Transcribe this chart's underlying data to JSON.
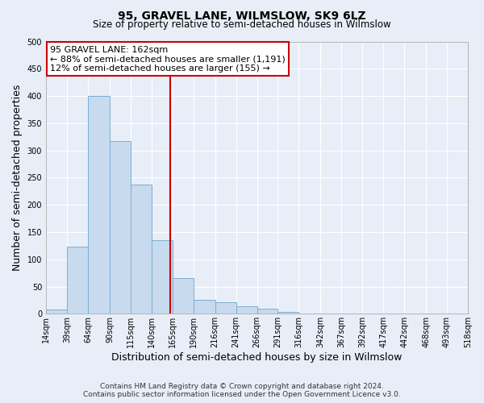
{
  "title": "95, GRAVEL LANE, WILMSLOW, SK9 6LZ",
  "subtitle": "Size of property relative to semi-detached houses in Wilmslow",
  "xlabel": "Distribution of semi-detached houses by size in Wilmslow",
  "ylabel": "Number of semi-detached properties",
  "bin_edges": [
    14,
    39,
    64,
    90,
    115,
    140,
    165,
    190,
    216,
    241,
    266,
    291,
    316,
    342,
    367,
    392,
    417,
    442,
    468,
    493,
    518
  ],
  "bar_heights": [
    8,
    123,
    400,
    318,
    237,
    135,
    65,
    26,
    22,
    14,
    10,
    4,
    1,
    0,
    0,
    0,
    0,
    0,
    0,
    1
  ],
  "bar_color": "#c8daee",
  "bar_edgecolor": "#7bafd4",
  "property_line_x": 162,
  "annotation_line1": "95 GRAVEL LANE: 162sqm",
  "annotation_line2": "← 88% of semi-detached houses are smaller (1,191)",
  "annotation_line3": "12% of semi-detached houses are larger (155) →",
  "annotation_box_color": "#ffffff",
  "annotation_box_edgecolor": "#cc0000",
  "vline_color": "#cc0000",
  "ylim": [
    0,
    500
  ],
  "tick_labels": [
    "14sqm",
    "39sqm",
    "64sqm",
    "90sqm",
    "115sqm",
    "140sqm",
    "165sqm",
    "190sqm",
    "216sqm",
    "241sqm",
    "266sqm",
    "291sqm",
    "316sqm",
    "342sqm",
    "367sqm",
    "392sqm",
    "417sqm",
    "442sqm",
    "468sqm",
    "493sqm",
    "518sqm"
  ],
  "footnote1": "Contains HM Land Registry data © Crown copyright and database right 2024.",
  "footnote2": "Contains public sector information licensed under the Open Government Licence v3.0.",
  "background_color": "#e8eef8",
  "plot_bg_color": "#e8eef8",
  "grid_color": "#ffffff",
  "title_fontsize": 10,
  "subtitle_fontsize": 8.5,
  "axis_label_fontsize": 9,
  "tick_fontsize": 7,
  "annotation_fontsize": 8,
  "footnote_fontsize": 6.5
}
